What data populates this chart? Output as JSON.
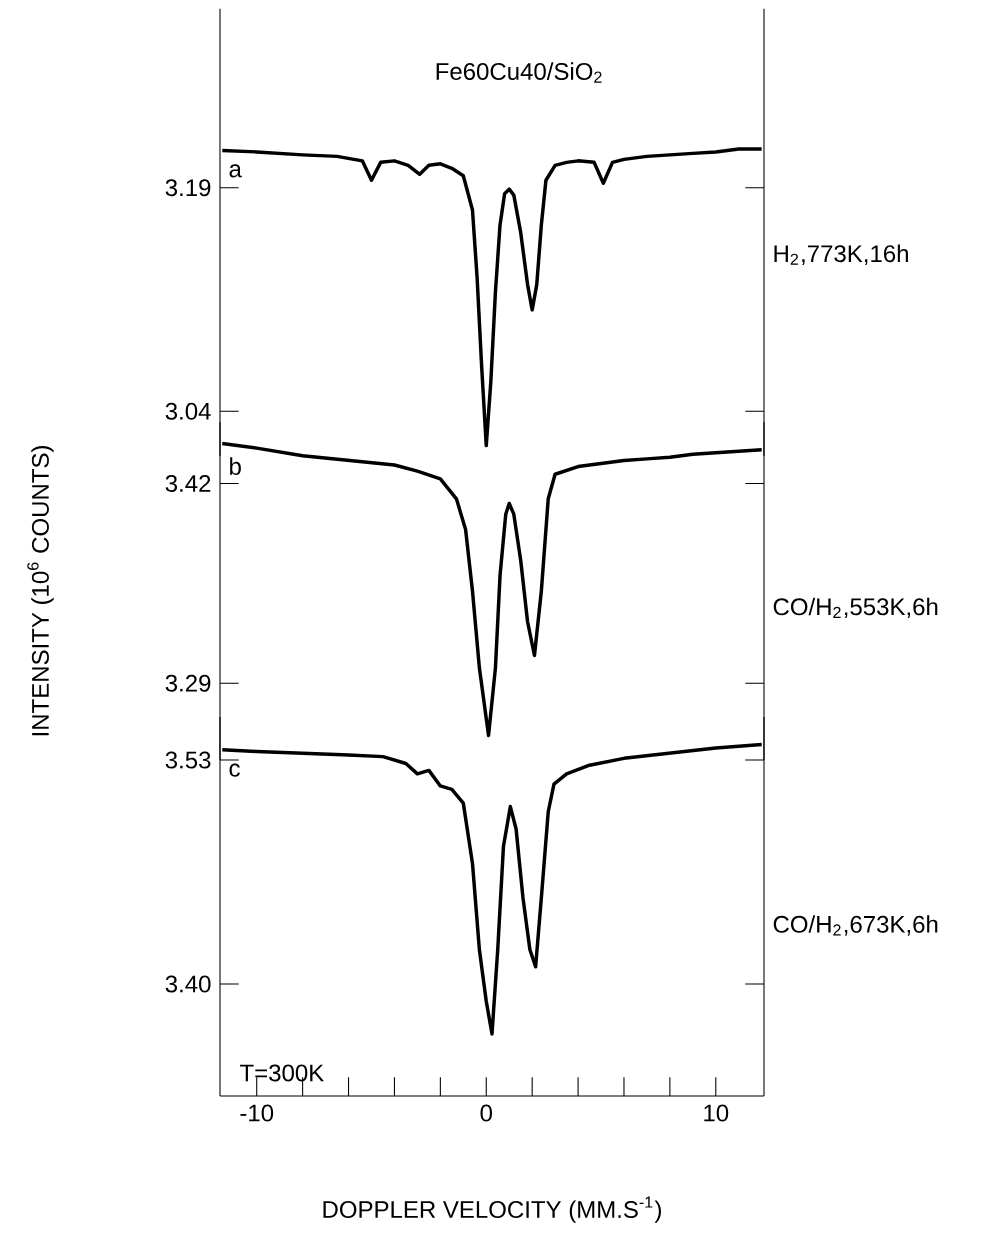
{
  "chart_data": [
    {
      "type": "line",
      "title": "Fe60Cu40/SiO$_{2}$",
      "xlim": [
        -11.6,
        12.1
      ],
      "ylim": [
        3.01,
        3.31
      ],
      "yticks": [
        3.19,
        3.04
      ],
      "tick_labels": "y",
      "annotations": [
        "H$_{2}$,773K,16h"
      ],
      "x": [
        -11.5,
        -10,
        -8,
        -6.5,
        -5.4,
        -5.0,
        -4.6,
        -4,
        -3.4,
        -2.9,
        -2.5,
        -2,
        -1.5,
        -1.0,
        -0.6,
        -0.4,
        -0.2,
        0.0,
        0.2,
        0.4,
        0.6,
        0.8,
        1.0,
        1.2,
        1.5,
        1.8,
        2.0,
        2.2,
        2.4,
        2.6,
        3.0,
        3.5,
        4,
        4.7,
        5.1,
        5.5,
        6,
        7,
        8,
        9,
        10,
        11,
        12
      ],
      "series": [
        {
          "name": "a",
          "color": "#000000",
          "values": [
            3.215,
            3.214,
            3.212,
            3.211,
            3.208,
            3.195,
            3.207,
            3.208,
            3.205,
            3.199,
            3.205,
            3.206,
            3.203,
            3.198,
            3.175,
            3.13,
            3.07,
            3.017,
            3.06,
            3.12,
            3.165,
            3.186,
            3.189,
            3.185,
            3.16,
            3.125,
            3.108,
            3.125,
            3.165,
            3.195,
            3.205,
            3.207,
            3.208,
            3.207,
            3.193,
            3.207,
            3.209,
            3.211,
            3.212,
            3.213,
            3.214,
            3.216,
            3.216
          ]
        }
      ]
    },
    {
      "type": "line",
      "ylabel": "INTENSITY (10$^{6}$ COUNTS)",
      "xlim": [
        -11.6,
        12.1
      ],
      "ylim": [
        3.24,
        3.46
      ],
      "yticks": [
        3.42,
        3.29
      ],
      "tick_labels": "y",
      "annotations": [
        "CO/H$_{2}$,553K,6h"
      ],
      "x": [
        -11.5,
        -10,
        -8,
        -6,
        -4,
        -3,
        -2,
        -1.3,
        -0.9,
        -0.6,
        -0.3,
        0.1,
        0.4,
        0.6,
        0.85,
        1.0,
        1.2,
        1.5,
        1.8,
        2.1,
        2.4,
        2.7,
        3.0,
        4,
        5,
        6,
        7,
        8,
        9,
        10,
        11,
        12
      ],
      "series": [
        {
          "name": "b",
          "color": "#000000",
          "values": [
            3.446,
            3.443,
            3.438,
            3.435,
            3.432,
            3.428,
            3.423,
            3.41,
            3.39,
            3.35,
            3.3,
            3.256,
            3.3,
            3.36,
            3.4,
            3.407,
            3.4,
            3.37,
            3.33,
            3.308,
            3.35,
            3.41,
            3.426,
            3.431,
            3.433,
            3.435,
            3.436,
            3.437,
            3.439,
            3.44,
            3.441,
            3.442
          ]
        }
      ]
    },
    {
      "type": "line",
      "xlabel": "DOPPLER VELOCITY (MM.S$^{-1}$)",
      "xlim": [
        -11.6,
        12.1
      ],
      "ylim": [
        3.335,
        3.555
      ],
      "yticks": [
        3.53,
        {
          "value": 3.4,
          "label": "3.40"
        }
      ],
      "xticks": [
        -10,
        {
          "value": -8,
          "label": null
        },
        {
          "value": -6,
          "label": null
        },
        {
          "value": -4,
          "label": null
        },
        {
          "value": -2,
          "label": null
        },
        0,
        {
          "value": 2,
          "label": null
        },
        {
          "value": 4,
          "label": null
        },
        {
          "value": 6,
          "label": null
        },
        {
          "value": 8,
          "label": null
        },
        10
      ],
      "annotations": [
        "CO/H$_{2}$,673K,6h",
        "T=300K"
      ],
      "x": [
        -11.5,
        -10,
        -8,
        -6,
        -4.5,
        -3.5,
        -3,
        -2.5,
        -2,
        -1.5,
        -1.0,
        -0.6,
        -0.3,
        0.0,
        0.25,
        0.5,
        0.75,
        1.05,
        1.3,
        1.6,
        1.9,
        2.15,
        2.4,
        2.7,
        2.95,
        3.5,
        4.5,
        6,
        8,
        10,
        12
      ],
      "series": [
        {
          "name": "c",
          "color": "#000000",
          "values": [
            3.536,
            3.535,
            3.534,
            3.533,
            3.532,
            3.528,
            3.522,
            3.524,
            3.515,
            3.513,
            3.505,
            3.47,
            3.42,
            3.39,
            3.371,
            3.42,
            3.48,
            3.503,
            3.49,
            3.45,
            3.42,
            3.41,
            3.45,
            3.5,
            3.516,
            3.522,
            3.527,
            3.531,
            3.534,
            3.537,
            3.539
          ]
        }
      ]
    }
  ]
}
